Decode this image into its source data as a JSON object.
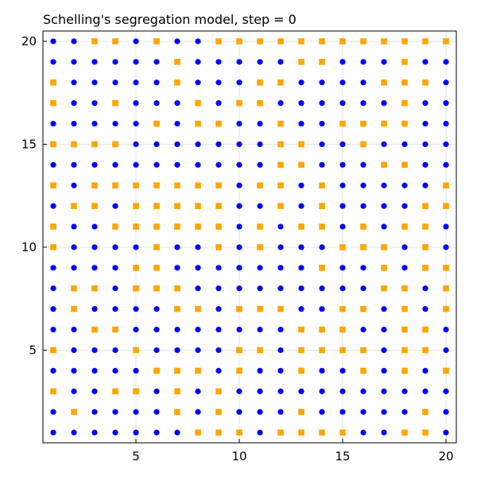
{
  "chart_data": {
    "type": "scatter",
    "title": "Schelling's segregation model, step = 0",
    "xlim": [
      0.5,
      20.5
    ],
    "ylim": [
      0.5,
      20.5
    ],
    "xticks": [
      5,
      10,
      15,
      20
    ],
    "yticks": [
      5,
      10,
      15,
      20
    ],
    "grid": true,
    "legend": "none",
    "colors": {
      "group1": "#0000ff",
      "group2": "#ffa500"
    },
    "markers": {
      "group1": "circle",
      "group2": "square"
    },
    "rows": {
      "20": ". . ; ; . ; . . ; ; ; ; ; ; ; ; ; ; ; ;",
      "19": "1 . 1 1 1 . 2 1 . . . . 2 2 1 . 1 2 1 .",
      "18": "2 1 1 1 . . 2 . 1 . 2 2 1 1 1 . 2 2 2 .",
      "17": "2 1 1 2 . 1 1 2 . 2 2 1 1 1 1 1 . 2 1 1",
      "16": "1 1 1 1 1 2 1 2 2 1 1 2 1 1 2 2 2 2 1 1",
      "15": "2 2 2 2 1 1 1 . . 1 1 2 2 1 . 2 . . . .",
      "14": "1 1 1 1 1 1 1 . 1 1 1 2 2 1 1 1 2 2 1 1",
      "13": "2 1 2 2 2 2 2 2 2 . 2 2 . 2 . . 1 . . 2",
      "12": "1 2 2 1 2 2 2 2 2 1 . 2 1 2 . 1 1 1 2 2",
      "11": "2 1 . 2 2 2 2 2 2 . 2 1 2 2 . 2 1 2 2 1",
      "10": "2 . 1 1 1 2 1 1 2 . 2 . 1 1 2 2 2 1 2 1",
      "9": "1 . 1 1 2 2 1 1 1 . . . . 2 1 1 2 1 2 2",
      "8": "1 2 2 1 2 2 2 1 . . 1 1 1 1 1 1 2 2 1 2",
      "7": "1 2 . 1 1 . 2 2 . 2 2 2 1 1 2 2 1 2 1 2",
      "6": ". . 2 2 1 . . . . . 1 . 2 2 2 . 1 2 2 1",
      "5": "2 1 . 1 2 . . . . 2 2 . 2 2 2 2 1 2 2 1",
      "4": "1 1 1 1 . 2 2 2 . 2 1 1 2 1 1 2 1 2 1 2",
      "3": "2 . . 2 2 1 2 . 2 . . 1 . 1 . 1 . . 1 1",
      "2": ". 2 1 1 . . 2 . 2 1 . 1 2 1 1 1 1 . 2 .",
      "1": "1 1 1 1 1 1 1 2 2 2 1 2 2 2 2 1 1 2 2 1"
    }
  }
}
